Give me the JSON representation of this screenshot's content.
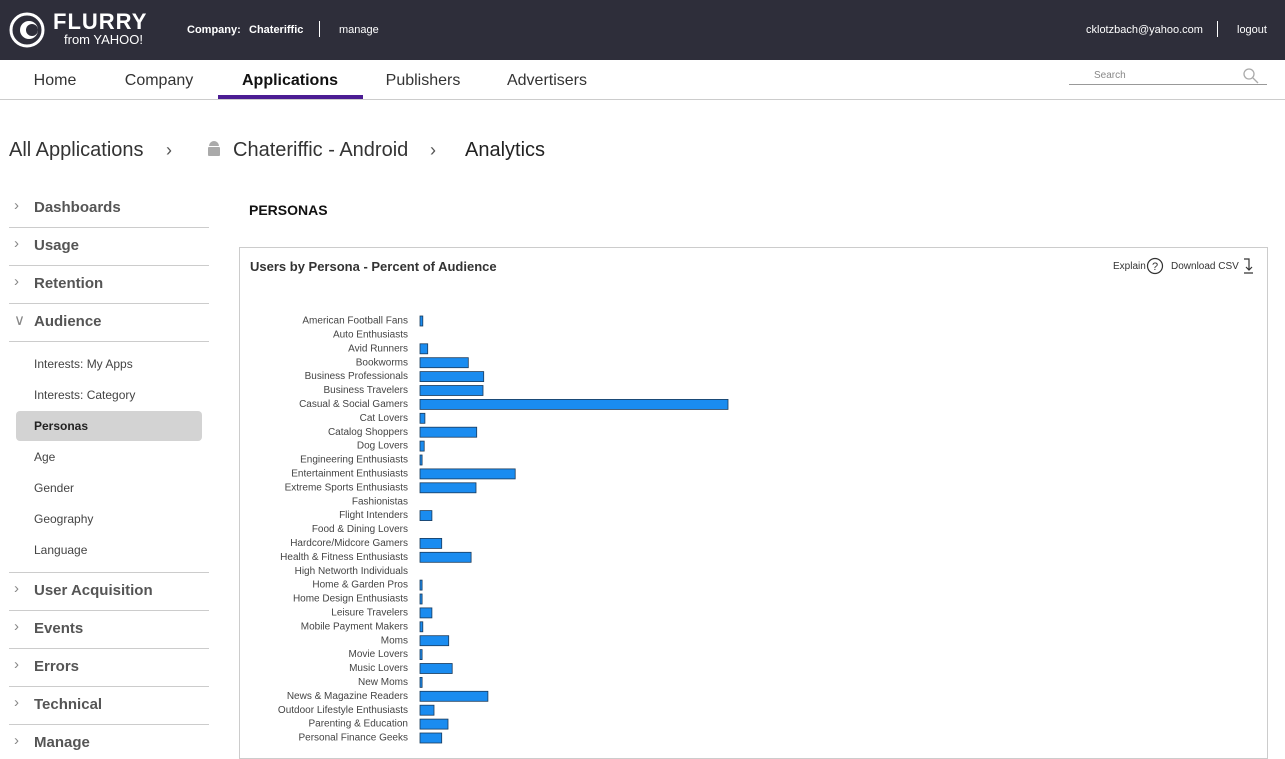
{
  "header": {
    "logo_top": "FLURRY",
    "logo_bottom": "from YAHOO!",
    "company_label": "Company:",
    "company": "Chateriffic",
    "manage": "manage",
    "email": "cklotzbach@yahoo.com",
    "logout": "logout"
  },
  "nav": {
    "tabs": [
      "Home",
      "Company",
      "Applications",
      "Publishers",
      "Advertisers"
    ],
    "search": "Search"
  },
  "breadcrumb": [
    "All Applications",
    "Chateriffic - Android",
    "Analytics"
  ],
  "sidebar": {
    "sections_top": [
      "Dashboards",
      "Usage",
      "Retention",
      "Audience"
    ],
    "audience_items": [
      "Interests: My Apps",
      "Interests: Category",
      "Personas",
      "Age",
      "Gender",
      "Geography",
      "Language"
    ],
    "sections_bottom": [
      "User Acquisition",
      "Events",
      "Errors",
      "Technical",
      "Manage"
    ]
  },
  "page_title": "PERSONAS",
  "panel": {
    "explain": "Explain",
    "download": "Download CSV"
  },
  "chart_data": {
    "type": "bar",
    "title": "Users by Persona - Percent of Audience",
    "color": "#1a8cf0",
    "categories": [
      "American Football Fans",
      "Auto Enthusiasts",
      "Avid Runners",
      "Bookworms",
      "Business Professionals",
      "Business Travelers",
      "Casual & Social Gamers",
      "Cat Lovers",
      "Catalog Shoppers",
      "Dog Lovers",
      "Engineering Enthusiasts",
      "Entertainment Enthusiasts",
      "Extreme Sports Enthusiasts",
      "Fashionistas",
      "Flight Intenders",
      "Food & Dining Lovers",
      "Hardcore/Midcore Gamers",
      "Health & Fitness Enthusiasts",
      "High Networth Individuals",
      "Home & Garden Pros",
      "Home Design Enthusiasts",
      "Leisure Travelers",
      "Mobile Payment Makers",
      "Moms",
      "Movie Lovers",
      "Music Lovers",
      "New Moms",
      "News & Magazine Readers",
      "Outdoor Lifestyle Enthusiasts",
      "Parenting & Education",
      "Personal Finance Geeks"
    ],
    "values": [
      0.4,
      0,
      1.1,
      6.9,
      9.1,
      9,
      44,
      0.7,
      8.1,
      0.6,
      0.3,
      13.6,
      8,
      0,
      1.7,
      0,
      3.1,
      7.3,
      0,
      0.3,
      0.3,
      1.7,
      0.4,
      4.1,
      0.3,
      4.6,
      0.3,
      9.7,
      2,
      4,
      3.1
    ]
  }
}
